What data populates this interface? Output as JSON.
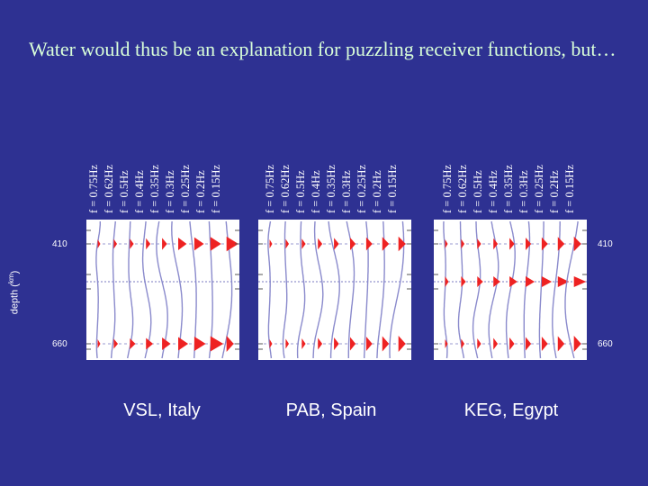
{
  "title": "Water would thus be an explanation for puzzling receiver functions, but…",
  "frequencies": [
    "f = 0.75Hz",
    "f = 0.62Hz",
    "f = 0.5Hz",
    "f = 0.4Hz",
    "f = 0.35Hz",
    "f = 0.3Hz",
    "f = 0.25Hz",
    "f = 0.2Hz",
    "f = 0.15Hz"
  ],
  "depth_axis": {
    "label_prefix": "depth (",
    "label_unit": "km",
    "label_suffix": ")",
    "tick_410": "410",
    "tick_660": "660"
  },
  "stations": [
    {
      "label": "VSL, Italy"
    },
    {
      "label": "PAB, Spain"
    },
    {
      "label": "KEG, Egypt"
    }
  ],
  "colors": {
    "background": "#2e3192",
    "panel": "#ffffff",
    "trace": "#8a8acc",
    "pulse": "#ee2222",
    "title": "#d9ffd9"
  }
}
